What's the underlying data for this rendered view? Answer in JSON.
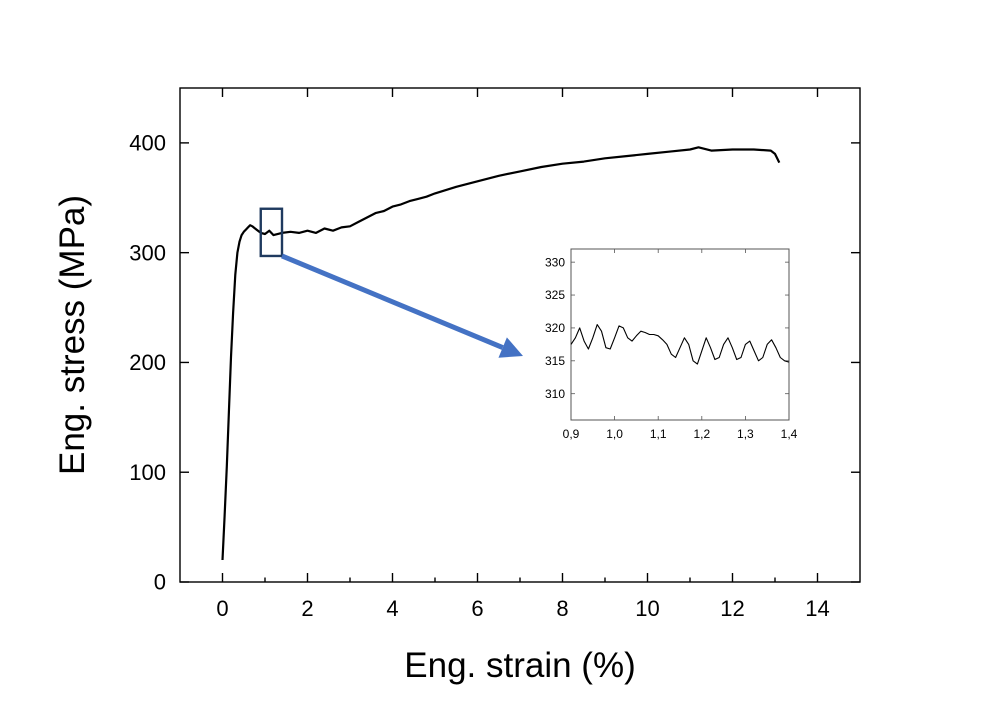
{
  "chart_data": [
    {
      "type": "line",
      "title": "",
      "xlabel": "Eng. strain (%)",
      "ylabel": "Eng. stress (MPa)",
      "xlim": [
        -1,
        15
      ],
      "ylim": [
        0,
        450
      ],
      "xticks": [
        0,
        2,
        4,
        6,
        8,
        10,
        12,
        14
      ],
      "yticks": [
        0,
        100,
        200,
        300,
        400
      ],
      "xtick_labels": [
        "0",
        "2",
        "4",
        "6",
        "8",
        "10",
        "12",
        "14"
      ],
      "ytick_labels": [
        "0",
        "100",
        "200",
        "300",
        "400"
      ],
      "grid": false,
      "line_color": "#000000",
      "series": [
        {
          "x": [
            0.0,
            0.05,
            0.1,
            0.15,
            0.2,
            0.25,
            0.3,
            0.35,
            0.4,
            0.45,
            0.5,
            0.55,
            0.6,
            0.65,
            0.7,
            0.8,
            0.9,
            1.0,
            1.1,
            1.2,
            1.4,
            1.6,
            1.8,
            2.0,
            2.2,
            2.4,
            2.6,
            2.8,
            3.0,
            3.2,
            3.4,
            3.6,
            3.8,
            4.0,
            4.2,
            4.4,
            4.6,
            4.8,
            5.0,
            5.5,
            6.0,
            6.5,
            7.0,
            7.5,
            8.0,
            8.5,
            9.0,
            9.5,
            10.0,
            10.5,
            11.0,
            11.2,
            11.5,
            12.0,
            12.5,
            12.9,
            13.0,
            13.1
          ],
          "y": [
            20,
            60,
            105,
            155,
            205,
            245,
            280,
            300,
            310,
            316,
            319,
            321,
            323,
            325,
            324,
            321,
            318,
            317,
            320,
            316,
            318,
            319,
            318,
            320,
            318,
            322,
            320,
            323,
            324,
            328,
            332,
            336,
            338,
            342,
            344,
            347,
            349,
            351,
            354,
            360,
            365,
            370,
            374,
            378,
            381,
            383,
            386,
            388,
            390,
            392,
            394,
            396,
            393,
            394,
            394,
            393,
            390,
            382
          ]
        }
      ],
      "highlight_box": {
        "x": [
          0.9,
          1.4
        ],
        "y": [
          297,
          340
        ]
      },
      "arrow_color": "#4472c4",
      "arrow_target": "inset"
    },
    {
      "type": "line",
      "title": "",
      "xlabel": "",
      "ylabel": "",
      "xlim": [
        0.9,
        1.4
      ],
      "ylim": [
        306,
        332
      ],
      "xticks": [
        0.9,
        1.0,
        1.1,
        1.2,
        1.3,
        1.4
      ],
      "yticks": [
        310,
        315,
        320,
        325,
        330
      ],
      "xtick_labels": [
        "0,9",
        "1,0",
        "1,1",
        "1,2",
        "1,3",
        "1,4"
      ],
      "ytick_labels": [
        "310",
        "315",
        "320",
        "325",
        "330"
      ],
      "grid": false,
      "line_color": "#000000",
      "series": [
        {
          "x": [
            0.9,
            0.91,
            0.92,
            0.93,
            0.94,
            0.95,
            0.96,
            0.97,
            0.98,
            0.99,
            1.0,
            1.01,
            1.02,
            1.03,
            1.04,
            1.05,
            1.06,
            1.07,
            1.08,
            1.09,
            1.1,
            1.11,
            1.12,
            1.13,
            1.14,
            1.15,
            1.16,
            1.17,
            1.18,
            1.19,
            1.2,
            1.21,
            1.22,
            1.23,
            1.24,
            1.25,
            1.26,
            1.27,
            1.28,
            1.29,
            1.3,
            1.31,
            1.32,
            1.33,
            1.34,
            1.35,
            1.36,
            1.37,
            1.38,
            1.39,
            1.4
          ],
          "y": [
            317.5,
            318.5,
            320.0,
            318.0,
            316.8,
            318.5,
            320.5,
            319.5,
            317.0,
            316.8,
            318.5,
            320.3,
            320.0,
            318.5,
            318.0,
            318.8,
            319.5,
            319.3,
            319.0,
            319.0,
            318.8,
            318.2,
            317.5,
            316.0,
            315.5,
            317.0,
            318.5,
            317.5,
            315.0,
            314.5,
            316.5,
            318.5,
            317.0,
            315.2,
            315.5,
            317.5,
            318.5,
            317.0,
            315.2,
            315.5,
            317.5,
            318.0,
            316.5,
            315.0,
            315.5,
            317.5,
            318.2,
            317.0,
            315.5,
            315.0,
            314.8
          ]
        }
      ]
    }
  ]
}
